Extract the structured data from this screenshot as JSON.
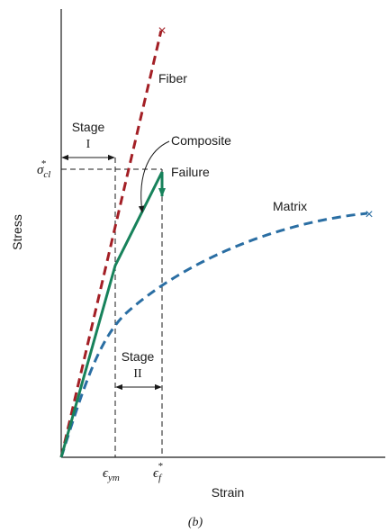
{
  "figure": {
    "axes": {
      "y_label": "Stress",
      "x_label": "Strain"
    },
    "curves": {
      "fiber": {
        "label": "Fiber",
        "color": "#a31f25",
        "end_marker": "×"
      },
      "composite": {
        "label": "Composite",
        "color": "#17825b",
        "failure_label": "Failure"
      },
      "matrix": {
        "label": "Matrix",
        "color": "#2a6ea3",
        "end_marker": "×"
      }
    },
    "stage_one": {
      "label": "Stage",
      "numeral": "I"
    },
    "stage_two": {
      "label": "Stage",
      "numeral": "II"
    },
    "stress_symbol": {
      "base": "σ",
      "sub": "cl",
      "sup": "*"
    },
    "strain_ym": {
      "base": "ϵ",
      "sub": "ym"
    },
    "strain_f": {
      "base": "ϵ",
      "sub": "f",
      "sup": "*"
    },
    "caption": "(b)"
  }
}
